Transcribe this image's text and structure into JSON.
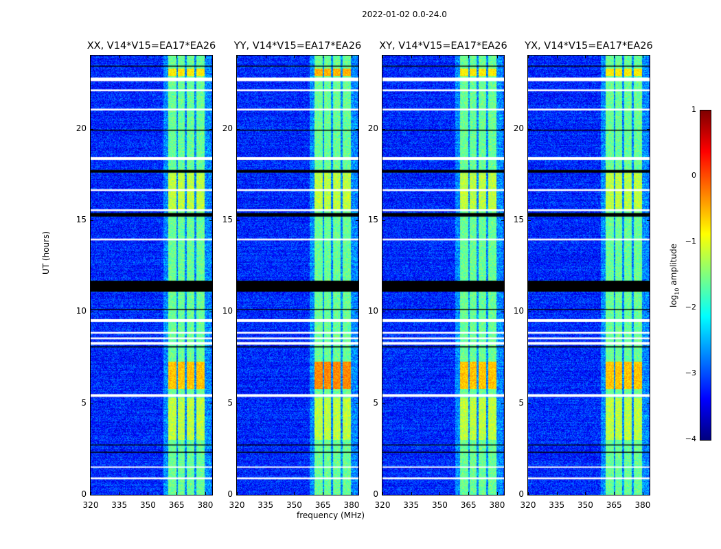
{
  "suptitle": "2022-01-02 0.0-24.0",
  "chart_data": {
    "type": "heatmap",
    "xlabel": "frequency (MHz)",
    "ylabel": "UT (hours)",
    "xlim": [
      320,
      383.6
    ],
    "ylim": [
      0,
      24
    ],
    "xticks": [
      "320",
      "335",
      "350",
      "365",
      "380"
    ],
    "xtick_values": [
      320,
      335,
      350,
      365,
      380
    ],
    "yticks": [
      "0",
      "5",
      "10",
      "15",
      "20"
    ],
    "ytick_values": [
      0,
      5,
      10,
      15,
      20
    ],
    "background_log_amp": -3.2,
    "bright_channels_mhz": [
      [
        360.3,
        364.6
      ],
      [
        365.6,
        369.2
      ],
      [
        370.3,
        374.2
      ],
      [
        375.3,
        379.6
      ]
    ],
    "bright_channel_log_amp": -1.6,
    "hot_spots": [
      {
        "ut": [
          5.8,
          7.3
        ],
        "log_amp": -0.4
      },
      {
        "ut": [
          22.9,
          23.3
        ],
        "log_amp": -0.6
      }
    ],
    "flagged_white_ut": [
      [
        0.85,
        0.95
      ],
      [
        1.5,
        1.55
      ],
      [
        5.35,
        5.5
      ],
      [
        8.2,
        8.35
      ],
      [
        8.5,
        8.6
      ],
      [
        8.8,
        8.9
      ],
      [
        9.45,
        9.6
      ],
      [
        13.9,
        14.0
      ],
      [
        15.5,
        15.6
      ],
      [
        16.6,
        16.7
      ],
      [
        18.3,
        18.45
      ],
      [
        21.0,
        21.1
      ],
      [
        22.05,
        22.15
      ],
      [
        22.6,
        22.8
      ]
    ],
    "flagged_black_ut": [
      [
        2.3,
        2.35
      ],
      [
        2.7,
        2.75
      ],
      [
        8.05,
        8.12
      ],
      [
        10.1,
        10.15
      ],
      [
        11.1,
        11.7
      ],
      [
        15.2,
        15.4
      ],
      [
        17.6,
        17.75
      ],
      [
        19.9,
        19.95
      ],
      [
        23.4,
        23.45
      ]
    ],
    "panels": [
      {
        "title": "XX, V14*V15=EA17*EA26"
      },
      {
        "title": "YY, V14*V15=EA17*EA26"
      },
      {
        "title": "XY, V14*V15=EA17*EA26"
      },
      {
        "title": "YX, V14*V15=EA17*EA26"
      }
    ],
    "colorbar": {
      "label": "log",
      "label_sub": "10",
      "label_rest": " amplitude",
      "range": [
        -4,
        1
      ],
      "ticks": [
        "1",
        "0",
        "−1",
        "−2",
        "−3",
        "−4"
      ],
      "tick_values": [
        1,
        0,
        -1,
        -2,
        -3,
        -4
      ],
      "colormap": "jet"
    }
  }
}
